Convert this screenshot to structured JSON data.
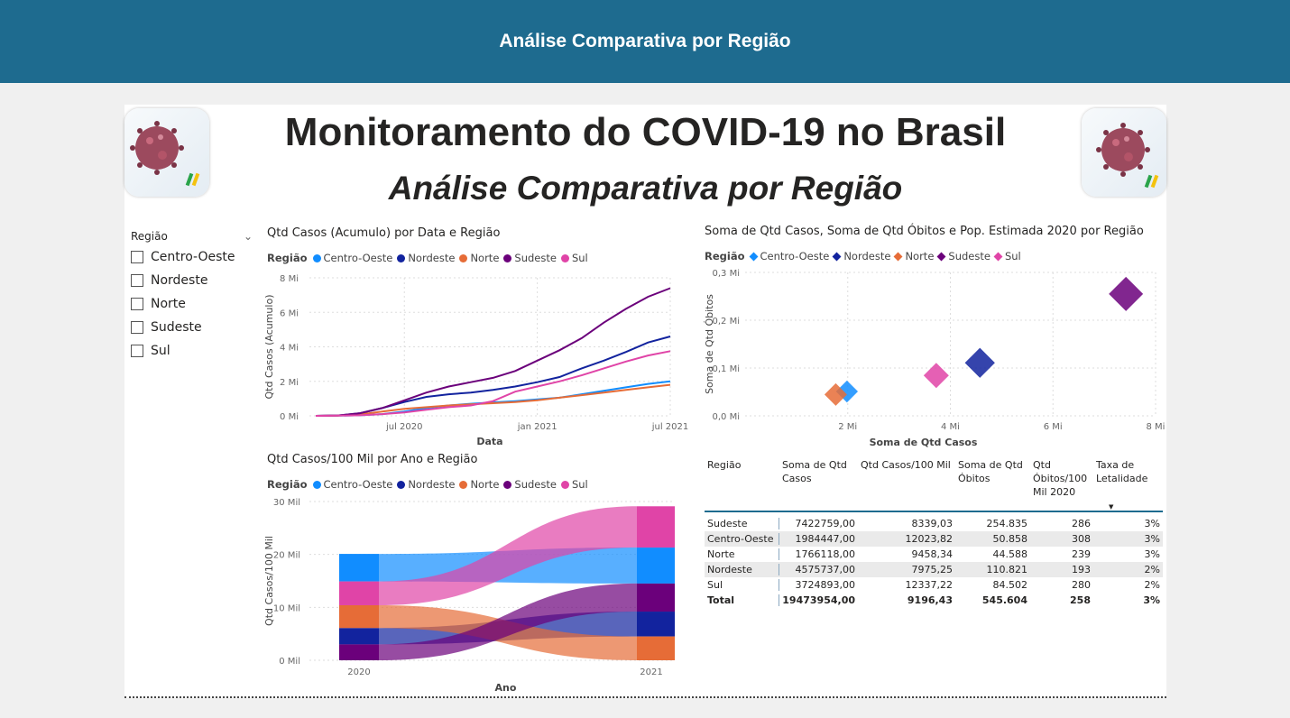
{
  "header": {
    "title": "Análise Comparativa por Região"
  },
  "report": {
    "title": "Monitoramento do COVID-19 no Brasil",
    "subtitle": "Análise Comparativa por Região"
  },
  "colors": {
    "header_bg": "#1e6b8f",
    "centro_oeste": "#118DFF",
    "nordeste": "#12239E",
    "norte": "#E66C37",
    "sudeste": "#6B007B",
    "sul": "#E044A7"
  },
  "slicer": {
    "title": "Região",
    "items": [
      "Centro-Oeste",
      "Nordeste",
      "Norte",
      "Sudeste",
      "Sul"
    ]
  },
  "chart_data": [
    {
      "type": "line",
      "title": "Qtd Casos (Acumulo) por Data e Região",
      "legend_title": "Região",
      "xlabel": "Data",
      "ylabel": "Qtd Casos (Acumulo)",
      "ylim": [
        0,
        8000000
      ],
      "y_ticks": [
        "0 Mi",
        "2 Mi",
        "4 Mi",
        "6 Mi",
        "8 Mi"
      ],
      "x_ticks": [
        "jul 2020",
        "jan 2021",
        "jul 2021"
      ],
      "x": [
        "2020-03",
        "2020-04",
        "2020-05",
        "2020-06",
        "2020-07",
        "2020-08",
        "2020-09",
        "2020-10",
        "2020-11",
        "2020-12",
        "2021-01",
        "2021-02",
        "2021-03",
        "2021-04",
        "2021-05",
        "2021-06",
        "2021-07"
      ],
      "series": [
        {
          "name": "Centro-Oeste",
          "values": [
            0,
            0.01,
            0.03,
            0.1,
            0.25,
            0.45,
            0.6,
            0.7,
            0.78,
            0.85,
            0.95,
            1.05,
            1.25,
            1.45,
            1.65,
            1.85,
            2.0
          ]
        },
        {
          "name": "Nordeste",
          "values": [
            0,
            0.02,
            0.15,
            0.45,
            0.8,
            1.1,
            1.25,
            1.35,
            1.5,
            1.7,
            1.95,
            2.25,
            2.75,
            3.2,
            3.7,
            4.25,
            4.6
          ]
        },
        {
          "name": "Norte",
          "values": [
            0,
            0.01,
            0.08,
            0.25,
            0.4,
            0.5,
            0.6,
            0.67,
            0.73,
            0.8,
            0.9,
            1.05,
            1.2,
            1.35,
            1.5,
            1.65,
            1.8
          ]
        },
        {
          "name": "Sudeste",
          "values": [
            0,
            0.02,
            0.15,
            0.45,
            0.9,
            1.35,
            1.7,
            1.95,
            2.2,
            2.6,
            3.2,
            3.8,
            4.5,
            5.4,
            6.2,
            6.9,
            7.4
          ]
        },
        {
          "name": "Sul",
          "values": [
            0,
            0.01,
            0.03,
            0.1,
            0.2,
            0.35,
            0.5,
            0.6,
            0.85,
            1.4,
            1.7,
            2.0,
            2.35,
            2.75,
            3.15,
            3.5,
            3.75
          ]
        }
      ]
    },
    {
      "type": "scatter",
      "title": "Soma de Qtd Casos, Soma de Qtd Óbitos e Pop. Estimada 2020 por Região",
      "legend_title": "Região",
      "xlabel": "Soma de Qtd Casos",
      "ylabel": "Soma de Qtd Óbitos",
      "xlim": [
        0,
        8000000
      ],
      "ylim": [
        0,
        300000
      ],
      "x_ticks": [
        "2 Mi",
        "4 Mi",
        "6 Mi",
        "8 Mi"
      ],
      "y_ticks": [
        "0,0 Mi",
        "0,1 Mi",
        "0,2 Mi",
        "0,3 Mi"
      ],
      "points": [
        {
          "name": "Centro-Oeste",
          "x": 1984447,
          "y": 50858,
          "pop": 16.5
        },
        {
          "name": "Nordeste",
          "x": 4575737,
          "y": 110821,
          "pop": 57.4
        },
        {
          "name": "Norte",
          "x": 1766118,
          "y": 44588,
          "pop": 18.7
        },
        {
          "name": "Sudeste",
          "x": 7422759,
          "y": 254835,
          "pop": 89.0
        },
        {
          "name": "Sul",
          "x": 3724893,
          "y": 84502,
          "pop": 30.2
        }
      ]
    },
    {
      "type": "bar",
      "subtype": "ribbon",
      "title": "Qtd Casos/100 Mil por Ano e Região",
      "legend_title": "Região",
      "xlabel": "Ano",
      "ylabel": "Qtd Casos/100 Mil",
      "ylim": [
        0,
        30000
      ],
      "y_ticks": [
        "0 Mil",
        "10 Mil",
        "20 Mil",
        "30 Mil"
      ],
      "categories": [
        "2020",
        "2021"
      ],
      "series": [
        {
          "name": "Centro-Oeste",
          "values": [
            5200,
            6800
          ]
        },
        {
          "name": "Nordeste",
          "values": [
            3100,
            4700
          ]
        },
        {
          "name": "Norte",
          "values": [
            4300,
            4500
          ]
        },
        {
          "name": "Sudeste",
          "values": [
            3000,
            5300
          ]
        },
        {
          "name": "Sul",
          "values": [
            4500,
            7800
          ]
        }
      ]
    }
  ],
  "table": {
    "headers": [
      "Região",
      "Soma de Qtd Casos",
      "Qtd Casos/100 Mil",
      "Soma de Qtd Óbitos",
      "Qtd Óbitos/100 Mil 2020",
      "Taxa de Letalidade"
    ],
    "rows": [
      [
        "Sudeste",
        "7422759,00",
        "8339,03",
        "254.835",
        "286",
        "3%"
      ],
      [
        "Centro-Oeste",
        "1984447,00",
        "12023,82",
        "50.858",
        "308",
        "3%"
      ],
      [
        "Norte",
        "1766118,00",
        "9458,34",
        "44.588",
        "239",
        "3%"
      ],
      [
        "Nordeste",
        "4575737,00",
        "7975,25",
        "110.821",
        "193",
        "2%"
      ],
      [
        "Sul",
        "3724893,00",
        "12337,22",
        "84.502",
        "280",
        "2%"
      ]
    ],
    "total": [
      "Total",
      "19473954,00",
      "9196,43",
      "545.604",
      "258",
      "3%"
    ]
  }
}
